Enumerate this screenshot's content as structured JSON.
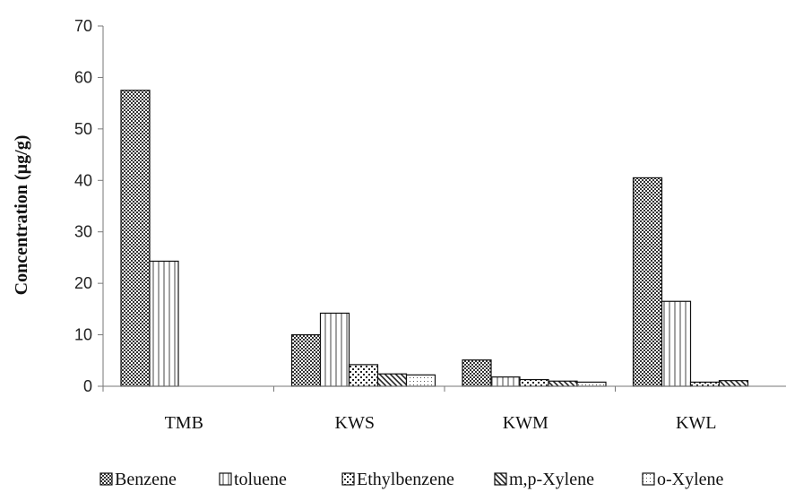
{
  "chart_data": {
    "type": "bar",
    "title": "",
    "xlabel": "",
    "ylabel": "Concentration (µg/g)",
    "ylim": [
      0,
      70
    ],
    "yticks": [
      0,
      10,
      20,
      30,
      40,
      50,
      60,
      70
    ],
    "grid": false,
    "legend_position": "bottom",
    "categories": [
      "TMB",
      "KWS",
      "KWM",
      "KWL"
    ],
    "series": [
      {
        "name": "Benzene",
        "pattern": "checker",
        "values": [
          57.5,
          10.0,
          5.1,
          40.5
        ]
      },
      {
        "name": "toluene",
        "pattern": "vlines",
        "values": [
          24.3,
          14.2,
          1.8,
          16.5
        ]
      },
      {
        "name": "Ethylbenzene",
        "pattern": "dots",
        "values": [
          0,
          4.2,
          1.3,
          0.8
        ]
      },
      {
        "name": "m,p-Xylene",
        "pattern": "diagonal",
        "values": [
          0,
          2.4,
          1.0,
          1.1
        ]
      },
      {
        "name": "o-Xylene",
        "pattern": "finedots",
        "values": [
          0,
          2.2,
          0.8,
          0
        ]
      }
    ]
  }
}
